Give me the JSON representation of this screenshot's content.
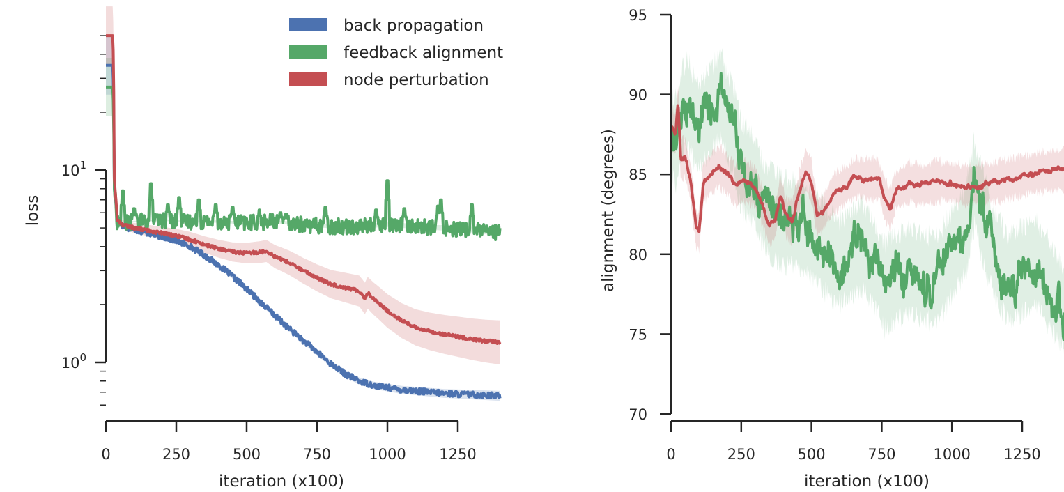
{
  "chart_data": [
    {
      "type": "line",
      "panel": "left",
      "ylabel": "loss",
      "xlabel": "iteration (x100)",
      "xscale": "linear",
      "yscale": "log",
      "xlim": [
        0,
        1400
      ],
      "ylim": [
        0.5,
        55
      ],
      "x_ticks": [
        0,
        250,
        500,
        750,
        1000,
        1250
      ],
      "x_tick_labels": [
        "0",
        "250",
        "500",
        "750",
        "1000",
        "1250"
      ],
      "y_major_ticks": [
        1,
        10
      ],
      "y_tick_base": "10",
      "y_tick_exponents": [
        "0",
        "1"
      ],
      "legend_placement": "top-center",
      "grid": false,
      "series": [
        {
          "name": "back propagation",
          "color": "#4C72B0",
          "x": [
            0,
            25,
            30,
            40,
            60,
            100,
            150,
            200,
            250,
            300,
            350,
            400,
            450,
            500,
            550,
            600,
            650,
            700,
            750,
            800,
            850,
            900,
            950,
            1000,
            1050,
            1100,
            1150,
            1200,
            1250,
            1300,
            1350,
            1400
          ],
          "y": [
            35,
            35,
            8,
            5.6,
            5.1,
            4.9,
            4.7,
            4.5,
            4.3,
            4.0,
            3.6,
            3.2,
            2.8,
            2.4,
            2.05,
            1.75,
            1.5,
            1.3,
            1.13,
            0.98,
            0.87,
            0.8,
            0.76,
            0.74,
            0.72,
            0.71,
            0.7,
            0.69,
            0.685,
            0.68,
            0.675,
            0.67
          ],
          "noise": 0.015,
          "band": 0.05
        },
        {
          "name": "feedback alignment",
          "color": "#55A868",
          "x": [
            0,
            25,
            30,
            40,
            60,
            100,
            200,
            300,
            400,
            500,
            600,
            700,
            800,
            900,
            1000,
            1100,
            1200,
            1300,
            1400
          ],
          "y": [
            27,
            27,
            8,
            5.4,
            5.3,
            5.4,
            5.5,
            5.4,
            5.4,
            5.3,
            5.4,
            5.2,
            5.1,
            5.1,
            5.2,
            5.1,
            5.0,
            4.9,
            4.7
          ],
          "noise": 0.04,
          "spikes": [
            [
              60,
              7.8
            ],
            [
              100,
              6.3
            ],
            [
              160,
              8.5
            ],
            [
              220,
              6.6
            ],
            [
              260,
              7.2
            ],
            [
              330,
              7.0
            ],
            [
              390,
              6.6
            ],
            [
              450,
              6.4
            ],
            [
              545,
              6.2
            ],
            [
              620,
              6.0
            ],
            [
              640,
              5.9
            ],
            [
              780,
              6.4
            ],
            [
              960,
              6.2
            ],
            [
              1000,
              8.8
            ],
            [
              1060,
              6.3
            ],
            [
              1180,
              6.5
            ],
            [
              1190,
              7.0
            ],
            [
              1300,
              6.6
            ]
          ],
          "band": 0.03
        },
        {
          "name": "node perturbation",
          "color": "#C44E52",
          "x": [
            0,
            25,
            30,
            40,
            60,
            100,
            150,
            200,
            250,
            300,
            350,
            400,
            450,
            500,
            550,
            570,
            600,
            650,
            700,
            750,
            800,
            850,
            900,
            920,
            930,
            950,
            1000,
            1050,
            1100,
            1150,
            1200,
            1250,
            1300,
            1350,
            1400
          ],
          "y": [
            50,
            50,
            9,
            5.5,
            5.2,
            5.0,
            4.85,
            4.7,
            4.55,
            4.35,
            4.1,
            3.9,
            3.75,
            3.7,
            3.75,
            3.8,
            3.55,
            3.3,
            3.0,
            2.75,
            2.55,
            2.45,
            2.35,
            2.15,
            2.3,
            2.15,
            1.85,
            1.65,
            1.52,
            1.45,
            1.4,
            1.36,
            1.32,
            1.29,
            1.27
          ],
          "noise": 0.008,
          "band": 0.22
        }
      ]
    },
    {
      "type": "line",
      "panel": "right",
      "ylabel": "alignment (degrees)",
      "xlabel": "iteration (x100)",
      "xscale": "linear",
      "yscale": "linear",
      "xlim": [
        0,
        1400
      ],
      "ylim": [
        70,
        95
      ],
      "x_ticks": [
        0,
        250,
        500,
        750,
        1000,
        1250
      ],
      "x_tick_labels": [
        "0",
        "250",
        "500",
        "750",
        "1000",
        "1250"
      ],
      "y_ticks": [
        70,
        75,
        80,
        85,
        90,
        95
      ],
      "y_tick_labels": [
        "70",
        "75",
        "80",
        "85",
        "90",
        "95"
      ],
      "grid": false,
      "series": [
        {
          "name": "feedback alignment",
          "color": "#55A868",
          "x": [
            0,
            20,
            40,
            60,
            80,
            100,
            120,
            140,
            160,
            180,
            200,
            220,
            250,
            280,
            300,
            330,
            360,
            400,
            440,
            480,
            520,
            560,
            600,
            640,
            680,
            720,
            760,
            800,
            850,
            900,
            950,
            1000,
            1050,
            1080,
            1100,
            1150,
            1200,
            1250,
            1300,
            1350,
            1400
          ],
          "y": [
            87.5,
            87,
            89,
            89.5,
            88.5,
            88,
            88.5,
            89,
            89.5,
            90,
            88.5,
            88,
            85.5,
            85,
            84.5,
            83,
            82.5,
            82,
            82,
            81.5,
            81,
            80,
            79.5,
            80,
            80.5,
            79.5,
            78,
            78.5,
            79,
            78.5,
            78.5,
            80,
            81.5,
            84.5,
            83,
            80,
            78.5,
            79,
            79.5,
            78,
            76.5
          ],
          "noise": 1.3,
          "band": 2.8
        },
        {
          "name": "node perturbation",
          "color": "#C44E52",
          "x": [
            0,
            15,
            25,
            35,
            50,
            70,
            90,
            100,
            115,
            140,
            170,
            200,
            230,
            260,
            300,
            330,
            350,
            370,
            390,
            410,
            430,
            460,
            480,
            500,
            520,
            540,
            580,
            620,
            660,
            700,
            740,
            760,
            780,
            800,
            850,
            900,
            950,
            1000,
            1050,
            1100,
            1150,
            1200,
            1250,
            1300,
            1350,
            1400
          ],
          "y": [
            88,
            87.5,
            89.5,
            86,
            86,
            84.5,
            81.5,
            81.5,
            84.5,
            85,
            85.5,
            85,
            84.3,
            84.6,
            84.2,
            82.8,
            81.8,
            82.2,
            83.5,
            82.3,
            82,
            84.2,
            85.3,
            84.6,
            82.3,
            82.6,
            83.8,
            84.3,
            84.8,
            84.7,
            84.7,
            83.5,
            82.8,
            84,
            84.5,
            84.3,
            84.6,
            84.5,
            84.3,
            84.4,
            84.5,
            84.7,
            84.9,
            85.1,
            85.2,
            85.3
          ],
          "noise": 0.18,
          "band": 1.3
        }
      ]
    }
  ]
}
